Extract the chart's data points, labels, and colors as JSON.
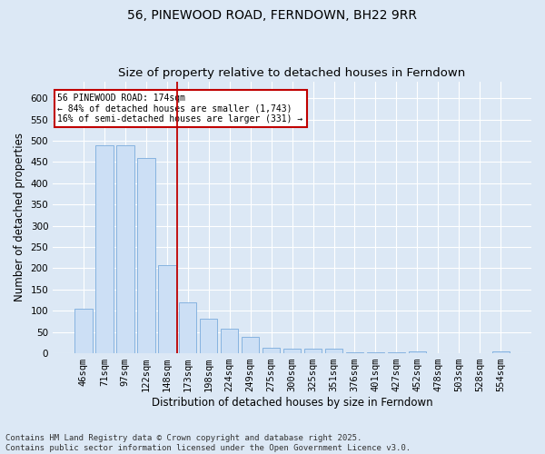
{
  "title": "56, PINEWOOD ROAD, FERNDOWN, BH22 9RR",
  "subtitle": "Size of property relative to detached houses in Ferndown",
  "xlabel": "Distribution of detached houses by size in Ferndown",
  "ylabel": "Number of detached properties",
  "categories": [
    "46sqm",
    "71sqm",
    "97sqm",
    "122sqm",
    "148sqm",
    "173sqm",
    "198sqm",
    "224sqm",
    "249sqm",
    "275sqm",
    "300sqm",
    "325sqm",
    "351sqm",
    "376sqm",
    "401sqm",
    "427sqm",
    "452sqm",
    "478sqm",
    "503sqm",
    "528sqm",
    "554sqm"
  ],
  "values": [
    105,
    490,
    490,
    460,
    207,
    120,
    82,
    57,
    38,
    13,
    10,
    11,
    11,
    2,
    2,
    2,
    5,
    0,
    0,
    0,
    4
  ],
  "bar_color": "#ccdff5",
  "bar_edge_color": "#7aabdc",
  "vline_x_index": 5,
  "vline_color": "#c00000",
  "annotation_text": "56 PINEWOOD ROAD: 174sqm\n← 84% of detached houses are smaller (1,743)\n16% of semi-detached houses are larger (331) →",
  "annotation_box_color": "white",
  "annotation_box_edge_color": "#c00000",
  "ylim": [
    0,
    640
  ],
  "yticks": [
    0,
    50,
    100,
    150,
    200,
    250,
    300,
    350,
    400,
    450,
    500,
    550,
    600
  ],
  "background_color": "#dce8f5",
  "plot_bg_color": "#dce8f5",
  "footer_text": "Contains HM Land Registry data © Crown copyright and database right 2025.\nContains public sector information licensed under the Open Government Licence v3.0.",
  "title_fontsize": 10,
  "axis_label_fontsize": 8.5,
  "tick_fontsize": 7.5,
  "footer_fontsize": 6.5
}
